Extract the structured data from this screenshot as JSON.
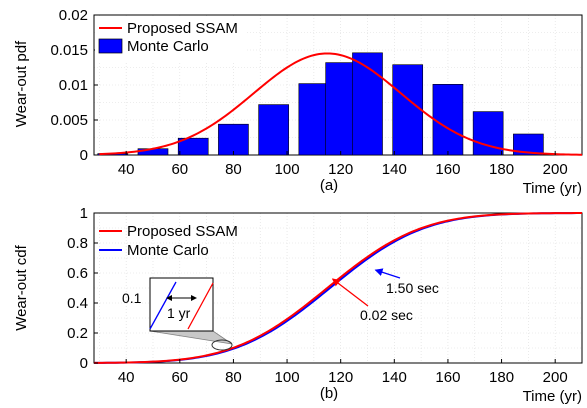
{
  "chart_data": [
    {
      "type": "bar",
      "panel_label": "(a)",
      "xlabel": "Time (yr)",
      "ylabel": "Wear-out pdf",
      "xlim": [
        28,
        210
      ],
      "ylim": [
        0,
        0.02
      ],
      "xticks": [
        40,
        60,
        80,
        100,
        120,
        140,
        160,
        180,
        200
      ],
      "yticks": [
        0,
        0.005,
        0.01,
        0.015,
        0.02
      ],
      "ytick_labels": [
        "0",
        "0.005",
        "0.01",
        "0.015",
        "0.02"
      ],
      "grid": true,
      "legend_position": "top-left",
      "series": [
        {
          "name": "Proposed SSAM",
          "kind": "line",
          "color": "#ff0000",
          "mean": 115,
          "std": 27.5,
          "x_range": [
            30,
            210
          ]
        },
        {
          "name": "Monte Carlo",
          "kind": "bar",
          "color": "#0000ff",
          "x": [
            35,
            50,
            65,
            80,
            95,
            110,
            120,
            130,
            145,
            160,
            175,
            190
          ],
          "values": [
            0.0002,
            0.0009,
            0.0024,
            0.0044,
            0.0072,
            0.0102,
            0.0132,
            0.0146,
            0.0129,
            0.0101,
            0.0062,
            0.003
          ]
        }
      ]
    },
    {
      "type": "line",
      "panel_label": "(b)",
      "xlabel": "Time (yr)",
      "ylabel": "Wear-out cdf",
      "xlim": [
        28,
        210
      ],
      "ylim": [
        0,
        1
      ],
      "xticks": [
        40,
        60,
        80,
        100,
        120,
        140,
        160,
        180,
        200
      ],
      "yticks": [
        0,
        0.2,
        0.4,
        0.6,
        0.8,
        1
      ],
      "ytick_labels": [
        "0",
        "0.2",
        "0.4",
        "0.6",
        "0.8",
        "1"
      ],
      "grid": true,
      "legend_position": "top-left",
      "series": [
        {
          "name": "Proposed SSAM",
          "color": "#ff0000",
          "mean": 115,
          "std": 27.5
        },
        {
          "name": "Monte Carlo",
          "color": "#0000ff",
          "mean": 116,
          "std": 27.5
        }
      ],
      "annotations": [
        {
          "text": "1.50 sec",
          "color": "#0000ff",
          "arrow_to": [
            133,
            0.62
          ]
        },
        {
          "text": "0.02 sec",
          "color": "#ff0000",
          "arrow_to": [
            117,
            0.56
          ]
        }
      ],
      "inset": {
        "offset_label": "0.1",
        "gap_label": "1 yr",
        "focus_x": 80,
        "focus_y": 0.11
      }
    }
  ]
}
